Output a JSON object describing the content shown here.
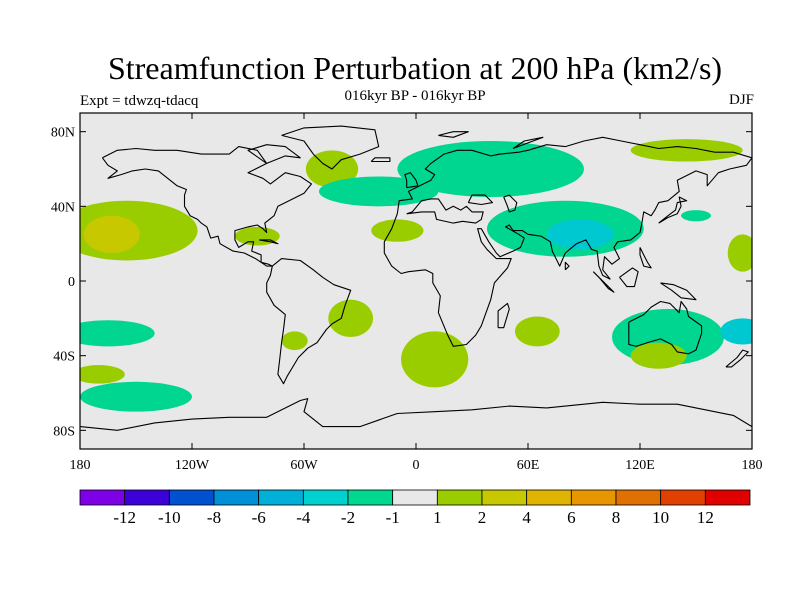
{
  "title": "Streamfunction Perturbation at 200 hPa (km2/s)",
  "subtitle": "016kyr BP - 016kyr BP",
  "left_label": "Expt = tdwzq-tdacq",
  "right_label": "DJF",
  "map": {
    "projection": "cylindrical-equidistant",
    "lon_range": [
      -180,
      180
    ],
    "lat_range": [
      -90,
      90
    ],
    "land_color": "#e8e8e8",
    "coastline_color": "#000000",
    "lat_ticks": [
      {
        "value": 80,
        "label": "80N"
      },
      {
        "value": 40,
        "label": "40N"
      },
      {
        "value": 0,
        "label": "0"
      },
      {
        "value": -40,
        "label": "40S"
      },
      {
        "value": -80,
        "label": "80S"
      }
    ],
    "lon_ticks": [
      {
        "value": -180,
        "label": "180"
      },
      {
        "value": -120,
        "label": "120W"
      },
      {
        "value": -60,
        "label": "60W"
      },
      {
        "value": 0,
        "label": "0"
      },
      {
        "value": 60,
        "label": "60E"
      },
      {
        "value": 120,
        "label": "120E"
      },
      {
        "value": 180,
        "label": "180"
      }
    ]
  },
  "field_regions": [
    {
      "name": "n-pacific-positive",
      "color": "#9acd00",
      "lon": -155,
      "lat": 27,
      "rx": 38,
      "ry": 16
    },
    {
      "name": "n-pacific-core",
      "color": "#c8c800",
      "lon": -163,
      "lat": 25,
      "rx": 15,
      "ry": 10
    },
    {
      "name": "gulf-of-mexico-positive",
      "color": "#9acd00",
      "lon": -85,
      "lat": 24,
      "rx": 12,
      "ry": 5
    },
    {
      "name": "greenland-positive",
      "color": "#9acd00",
      "lon": -45,
      "lat": 60,
      "rx": 14,
      "ry": 10
    },
    {
      "name": "n-atlantic-negative",
      "color": "#00d68f",
      "lon": -20,
      "lat": 48,
      "rx": 32,
      "ry": 8
    },
    {
      "name": "n-atlantic-positive",
      "color": "#9acd00",
      "lon": -10,
      "lat": 27,
      "rx": 14,
      "ry": 6
    },
    {
      "name": "eurasia-negative-west",
      "color": "#00d68f",
      "lon": 40,
      "lat": 60,
      "rx": 50,
      "ry": 15
    },
    {
      "name": "eurasia-negative-south",
      "color": "#00d68f",
      "lon": 80,
      "lat": 28,
      "rx": 42,
      "ry": 15
    },
    {
      "name": "tibet-core",
      "color": "#00c8d0",
      "lon": 88,
      "lat": 25,
      "rx": 18,
      "ry": 8
    },
    {
      "name": "arctic-positive",
      "color": "#9acd00",
      "lon": 145,
      "lat": 70,
      "rx": 30,
      "ry": 6
    },
    {
      "name": "n-pacific-west-negative",
      "color": "#00d68f",
      "lon": 150,
      "lat": 35,
      "rx": 8,
      "ry": 3
    },
    {
      "name": "w-pacific-positive",
      "color": "#9acd00",
      "lon": 175,
      "lat": 15,
      "rx": 8,
      "ry": 10
    },
    {
      "name": "south-america-positive",
      "color": "#9acd00",
      "lon": -35,
      "lat": -20,
      "rx": 12,
      "ry": 10
    },
    {
      "name": "patagonia-positive",
      "color": "#9acd00",
      "lon": -65,
      "lat": -32,
      "rx": 7,
      "ry": 5
    },
    {
      "name": "s-atlantic-positive",
      "color": "#9acd00",
      "lon": 10,
      "lat": -42,
      "rx": 18,
      "ry": 15
    },
    {
      "name": "s-indian-positive",
      "color": "#9acd00",
      "lon": 65,
      "lat": -27,
      "rx": 12,
      "ry": 8
    },
    {
      "name": "australia-negative",
      "color": "#00d68f",
      "lon": 135,
      "lat": -30,
      "rx": 30,
      "ry": 15
    },
    {
      "name": "tasman-core",
      "color": "#00c8d0",
      "lon": 175,
      "lat": -27,
      "rx": 12,
      "ry": 7
    },
    {
      "name": "s-pacific-negative",
      "color": "#00d68f",
      "lon": -165,
      "lat": -28,
      "rx": 25,
      "ry": 7
    },
    {
      "name": "southern-ocean-negative",
      "color": "#00d68f",
      "lon": -150,
      "lat": -62,
      "rx": 30,
      "ry": 8
    },
    {
      "name": "s-pacific-positive",
      "color": "#9acd00",
      "lon": -170,
      "lat": -50,
      "rx": 14,
      "ry": 5
    },
    {
      "name": "southern-ocean-positive",
      "color": "#9acd00",
      "lon": 130,
      "lat": -40,
      "rx": 15,
      "ry": 7
    }
  ],
  "colorbar": {
    "colors": [
      "#7d00e6",
      "#3c00d8",
      "#0050d0",
      "#0090d8",
      "#00b0d8",
      "#00d0d0",
      "#00d890",
      "#e8e8e8",
      "#9acd00",
      "#c8c800",
      "#e0b400",
      "#e89600",
      "#e07000",
      "#e04000",
      "#e00000"
    ],
    "labels": [
      "-12",
      "-10",
      "-8",
      "-6",
      "-4",
      "-2",
      "-1",
      "1",
      "2",
      "4",
      "6",
      "8",
      "10",
      "12"
    ]
  }
}
